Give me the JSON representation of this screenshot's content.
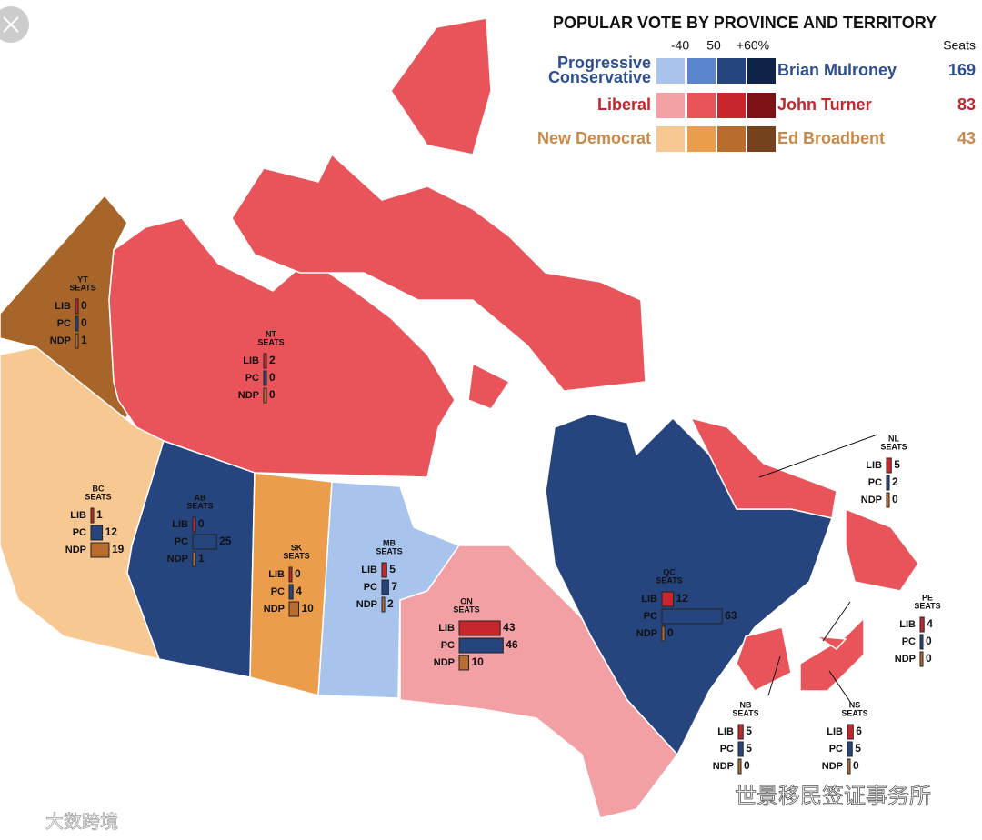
{
  "title": "POPULAR VOTE BY PROVINCE AND TERRITORY",
  "legend": {
    "scale_labels": [
      "-40",
      "50",
      "+60%"
    ],
    "seats_header": "Seats",
    "parties": [
      {
        "party_lines": [
          "Progressive",
          "Conservative"
        ],
        "leader": "Brian Mulroney",
        "seats": 169,
        "text_color": "#2d4e8f",
        "colors": [
          "#a9c4ec",
          "#5b85cf",
          "#26457f",
          "#0f2248"
        ]
      },
      {
        "party_lines": [
          "Liberal"
        ],
        "leader": "John Turner",
        "seats": 83,
        "text_color": "#c2272d",
        "colors": [
          "#f3a0a5",
          "#e9545a",
          "#c8262d",
          "#7c1116"
        ]
      },
      {
        "party_lines": [
          "New Democrat"
        ],
        "leader": "Ed Broadbent",
        "seats": 43,
        "text_color": "#c88a4a",
        "colors": [
          "#f7c892",
          "#eb9d4c",
          "#b86d2e",
          "#74431d"
        ]
      }
    ]
  },
  "seats_label": "SEATS",
  "row_labels": [
    "LIB",
    "PC",
    "NDP"
  ],
  "bar_colors": [
    "#c8262d",
    "#26457f",
    "#b86d2e"
  ],
  "regions": [
    {
      "code": "YT",
      "seats": [
        0,
        0,
        1
      ]
    },
    {
      "code": "NT",
      "seats": [
        2,
        0,
        0
      ]
    },
    {
      "code": "BC",
      "seats": [
        1,
        12,
        19
      ]
    },
    {
      "code": "AB",
      "seats": [
        0,
        25,
        1
      ]
    },
    {
      "code": "SK",
      "seats": [
        0,
        4,
        10
      ]
    },
    {
      "code": "MB",
      "seats": [
        5,
        7,
        2
      ]
    },
    {
      "code": "ON",
      "seats": [
        43,
        46,
        10
      ]
    },
    {
      "code": "QC",
      "seats": [
        12,
        63,
        0
      ]
    },
    {
      "code": "NL",
      "seats": [
        5,
        2,
        0
      ]
    },
    {
      "code": "PE",
      "seats": [
        4,
        0,
        0
      ]
    },
    {
      "code": "NB",
      "seats": [
        5,
        5,
        0
      ]
    },
    {
      "code": "NS",
      "seats": [
        6,
        5,
        0
      ]
    }
  ],
  "watermarks": [
    "大数跨境",
    "世景移民签证事务所"
  ]
}
